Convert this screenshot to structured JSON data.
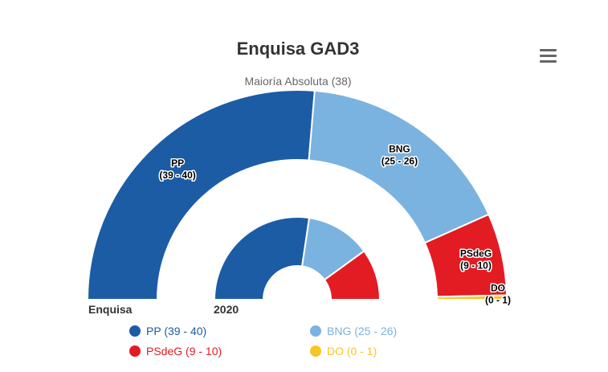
{
  "menu_icon": "hamburger-menu-icon",
  "chart_data": {
    "type": "pie",
    "variant": "semi-circle nested donut (parliament)",
    "title": "Enquisa GAD3",
    "subtitle": "Maioría Absoluta (38)",
    "rings": [
      {
        "name": "Enquisa",
        "slices": [
          {
            "label": "PP",
            "range": "(39 - 40)",
            "value": 39.5,
            "color": "#1b5ca5"
          },
          {
            "label": "BNG",
            "range": "(25 - 26)",
            "value": 25.5,
            "color": "#7ab3e0"
          },
          {
            "label": "PSdeG",
            "range": "(9 - 10)",
            "value": 9.5,
            "color": "#e31b23"
          },
          {
            "label": "DO",
            "range": "(0 - 1)",
            "value": 0.5,
            "color": "#f6c626"
          }
        ]
      },
      {
        "name": "2020",
        "slices": [
          {
            "label": "PP",
            "value": 41,
            "color": "#1b5ca5"
          },
          {
            "label": "BNG",
            "value": 19,
            "color": "#7ab3e0"
          },
          {
            "label": "PSdeG",
            "value": 15,
            "color": "#e31b23"
          }
        ]
      }
    ],
    "legend": [
      {
        "text": "PP (39 - 40)",
        "color": "#1b5ca5"
      },
      {
        "text": "BNG (25 - 26)",
        "color": "#7ab3e0"
      },
      {
        "text": "PSdeG (9 - 10)",
        "color": "#e31b23"
      },
      {
        "text": "DO (0 - 1)",
        "color": "#f6c626"
      }
    ],
    "legend_placement": "bottom"
  }
}
